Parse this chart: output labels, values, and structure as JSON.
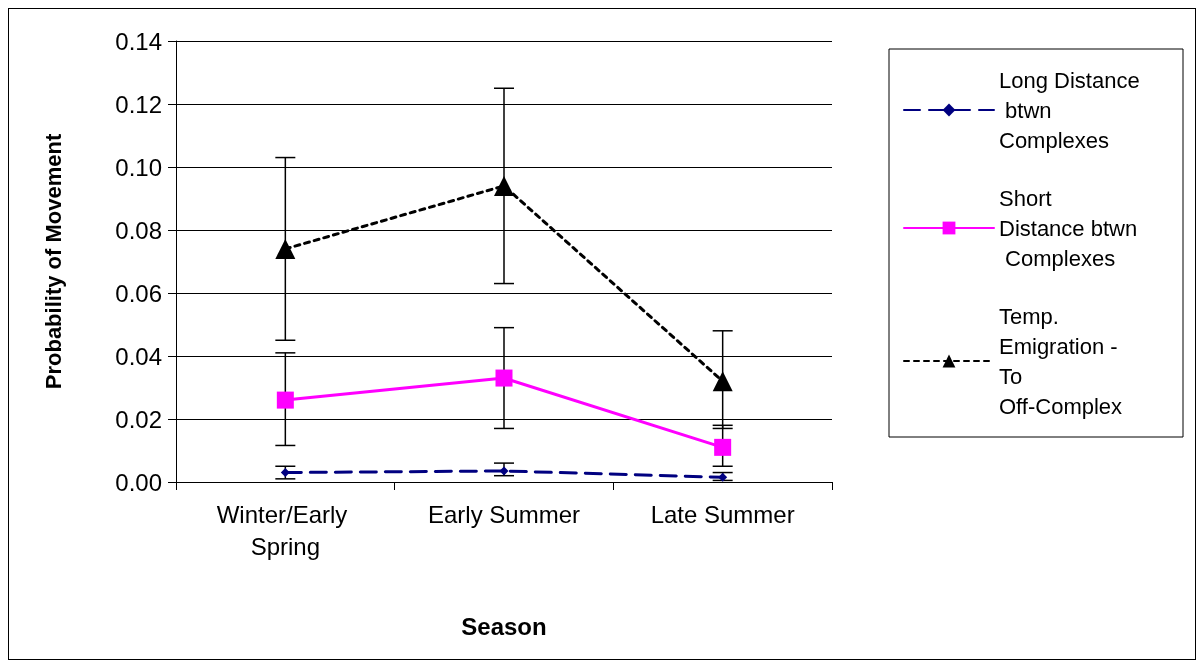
{
  "chart_data": {
    "type": "line",
    "xlabel": "Season",
    "ylabel": "Probability of Movement",
    "categories": [
      "Winter/Early Spring",
      "Early Summer",
      "Late Summer"
    ],
    "series": [
      {
        "name": "Long Distance btwn Complexes",
        "color": "#000080",
        "marker": "diamond",
        "line_style": "dashed",
        "values": [
          0.003,
          0.0035,
          0.0015
        ],
        "errors": [
          [
            0.001,
            0.005
          ],
          [
            0.002,
            0.006
          ],
          [
            0.0005,
            0.003
          ]
        ]
      },
      {
        "name": "Short Distance btwn Complexes",
        "color": "#ff00ff",
        "marker": "square",
        "line_style": "solid",
        "values": [
          0.026,
          0.033,
          0.011
        ],
        "errors": [
          [
            0.0116,
            0.041
          ],
          [
            0.017,
            0.049
          ],
          [
            0.005,
            0.018
          ]
        ]
      },
      {
        "name": "Temp. Emigration - To Off-Complex",
        "color": "#000000",
        "marker": "triangle",
        "line_style": "dotted",
        "values": [
          0.074,
          0.094,
          0.032
        ],
        "errors": [
          [
            0.045,
            0.103
          ],
          [
            0.063,
            0.125
          ],
          [
            0.017,
            0.048
          ]
        ]
      }
    ],
    "ylim": [
      0,
      0.14
    ],
    "yticks": [
      {
        "value": 0,
        "label": "0.00"
      },
      {
        "value": 0.02,
        "label": "0.02"
      },
      {
        "value": 0.04,
        "label": "0.04"
      },
      {
        "value": 0.06,
        "label": "0.06"
      },
      {
        "value": 0.08,
        "label": "0.08"
      },
      {
        "value": 0.1,
        "label": "0.10"
      },
      {
        "value": 0.12,
        "label": "0.12"
      },
      {
        "value": 0.14,
        "label": "0.14"
      }
    ],
    "grid": "y",
    "legend": "right"
  }
}
